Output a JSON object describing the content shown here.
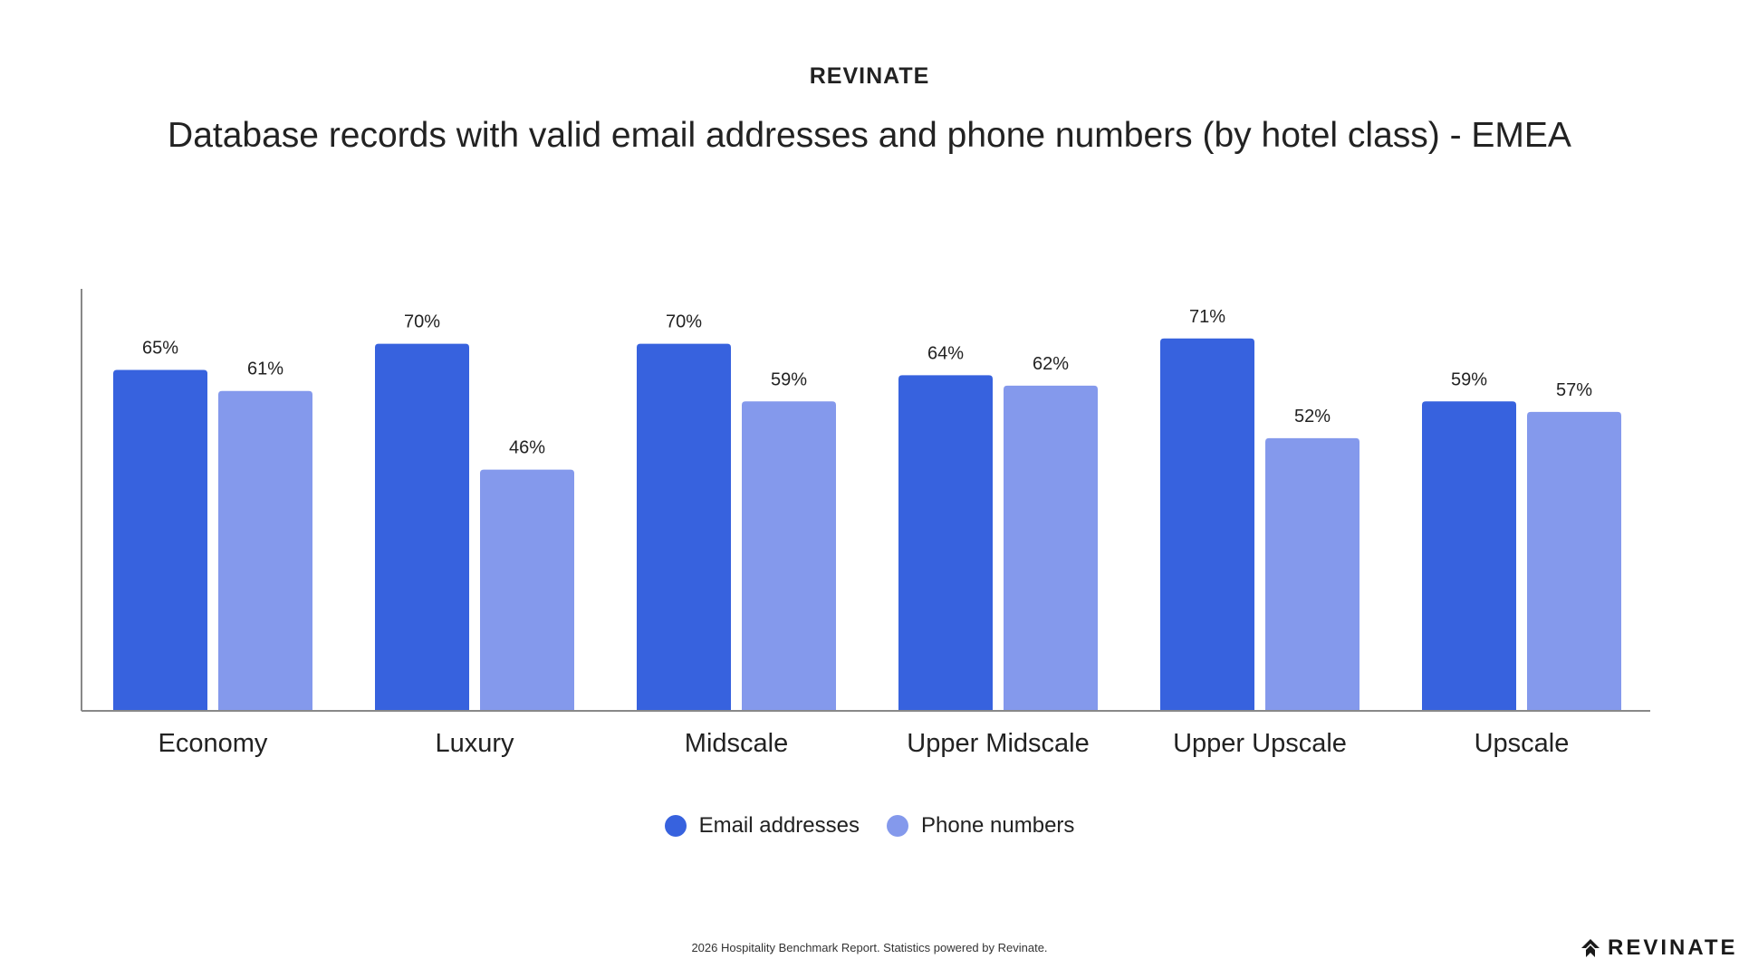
{
  "header": {
    "brand": "REVINATE",
    "title": "Database records with valid email addresses and phone numbers (by hotel class) - EMEA"
  },
  "chart_data": {
    "type": "bar",
    "categories": [
      "Economy",
      "Luxury",
      "Midscale",
      "Upper Midscale",
      "Upper Upscale",
      "Upscale"
    ],
    "series": [
      {
        "name": "Email addresses",
        "values": [
          65,
          70,
          70,
          64,
          71,
          59
        ],
        "labels": [
          "65%",
          "70%",
          "70%",
          "64%",
          "71%",
          "59%"
        ],
        "color": "#3762de"
      },
      {
        "name": "Phone numbers",
        "values": [
          61,
          46,
          59,
          62,
          52,
          57
        ],
        "labels": [
          "61%",
          "46%",
          "59%",
          "62%",
          "52%",
          "57%"
        ],
        "color": "#8499ec"
      }
    ],
    "ylim": [
      0,
      80
    ],
    "grid": false,
    "legend": "bottom-center"
  },
  "legend": {
    "items": [
      {
        "label": "Email addresses",
        "color": "#3762de"
      },
      {
        "label": "Phone numbers",
        "color": "#8499ec"
      }
    ]
  },
  "footer": {
    "text": "2026 Hospitality Benchmark Report. Statistics powered by Revinate.",
    "logo_text": "REVINATE",
    "logo_icon": "revinate-logo-icon"
  }
}
